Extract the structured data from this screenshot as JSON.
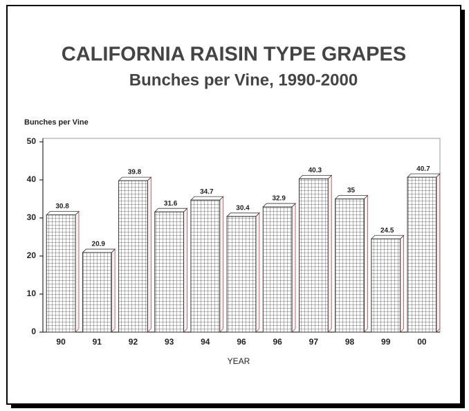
{
  "chart_data": {
    "type": "bar3d",
    "title": "CALIFORNIA RAISIN TYPE GRAPES",
    "subtitle": "Bunches per Vine, 1990-2000",
    "y_label": "Bunches per Vine",
    "x_label": "YEAR",
    "categories": [
      "90",
      "91",
      "92",
      "93",
      "94",
      "96",
      "96",
      "97",
      "98",
      "99",
      "00"
    ],
    "values": [
      30.8,
      20.9,
      39.8,
      31.6,
      34.7,
      30.4,
      32.9,
      40.3,
      35,
      24.5,
      40.7
    ],
    "color": "#ffffff",
    "ylim": [
      0,
      50
    ],
    "yticks": [
      0,
      10,
      20,
      30,
      40,
      50
    ]
  }
}
